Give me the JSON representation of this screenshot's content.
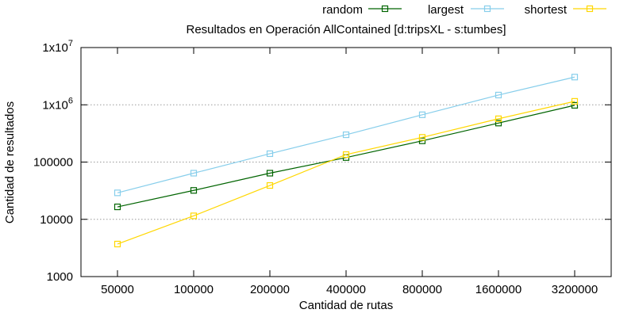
{
  "chart_data": {
    "type": "line",
    "title": "Resultados en Operación AllContained [d:tripsXL - s:tumbes]",
    "xlabel": "Cantidad de rutas",
    "ylabel": "Cantidad de resultados",
    "categories": [
      "50000",
      "100000",
      "200000",
      "400000",
      "800000",
      "1600000",
      "3200000"
    ],
    "y_scale": "log",
    "ylim": [
      1000,
      10000000
    ],
    "y_ticks": [
      {
        "value": 1000,
        "base": "1000",
        "exp": ""
      },
      {
        "value": 10000,
        "base": "10000",
        "exp": ""
      },
      {
        "value": 100000,
        "base": "100000",
        "exp": ""
      },
      {
        "value": 1000000,
        "base": "1x10",
        "exp": "6"
      },
      {
        "value": 10000000,
        "base": "1x10",
        "exp": "7"
      }
    ],
    "grid": "horizontal dotted",
    "legend_position": "top-right",
    "marker": "square",
    "series": [
      {
        "name": "random",
        "color": "#006400",
        "values": [
          16500,
          32000,
          64000,
          120000,
          235000,
          480000,
          980000
        ]
      },
      {
        "name": "largest",
        "color": "#87ceeb",
        "values": [
          29000,
          64000,
          140000,
          300000,
          670000,
          1480000,
          3050000
        ]
      },
      {
        "name": "shortest",
        "color": "#ffd700",
        "values": [
          3700,
          11500,
          39000,
          135000,
          270000,
          570000,
          1150000
        ]
      }
    ]
  }
}
